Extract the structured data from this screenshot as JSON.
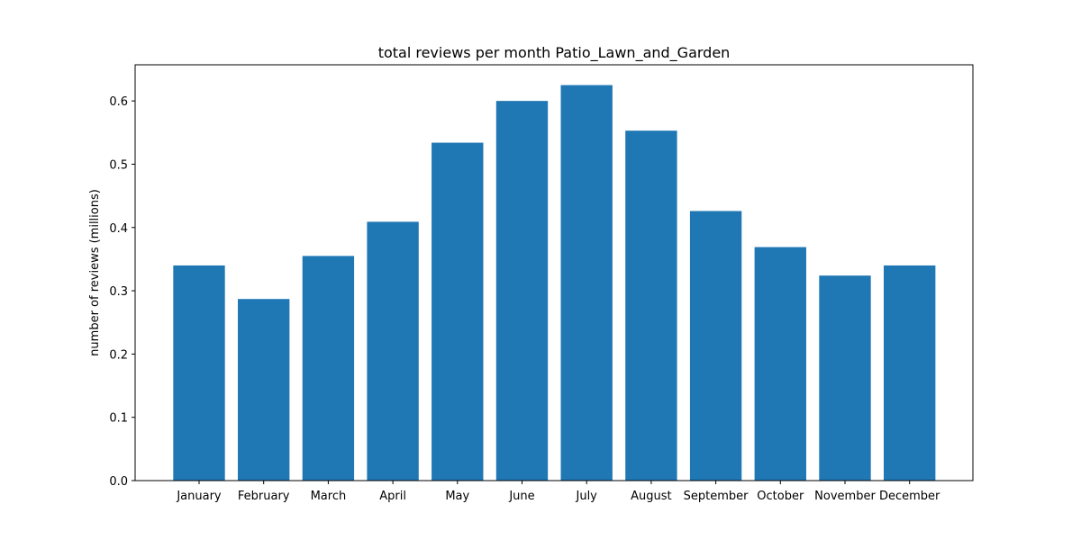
{
  "chart_data": {
    "type": "bar",
    "title": "total reviews per month Patio_Lawn_and_Garden",
    "xlabel": "",
    "ylabel": "number of reviews (millions)",
    "categories": [
      "January",
      "February",
      "March",
      "April",
      "May",
      "June",
      "July",
      "August",
      "September",
      "October",
      "November",
      "December"
    ],
    "values": [
      0.34,
      0.287,
      0.355,
      0.409,
      0.534,
      0.6,
      0.625,
      0.553,
      0.426,
      0.369,
      0.324,
      0.34
    ],
    "ylim": [
      0,
      0.6571
    ],
    "yticks": [
      "0.0",
      "0.1",
      "0.2",
      "0.3",
      "0.4",
      "0.5",
      "0.6"
    ],
    "grid": false,
    "legend": "none",
    "bar_color": "#1f77b4"
  }
}
